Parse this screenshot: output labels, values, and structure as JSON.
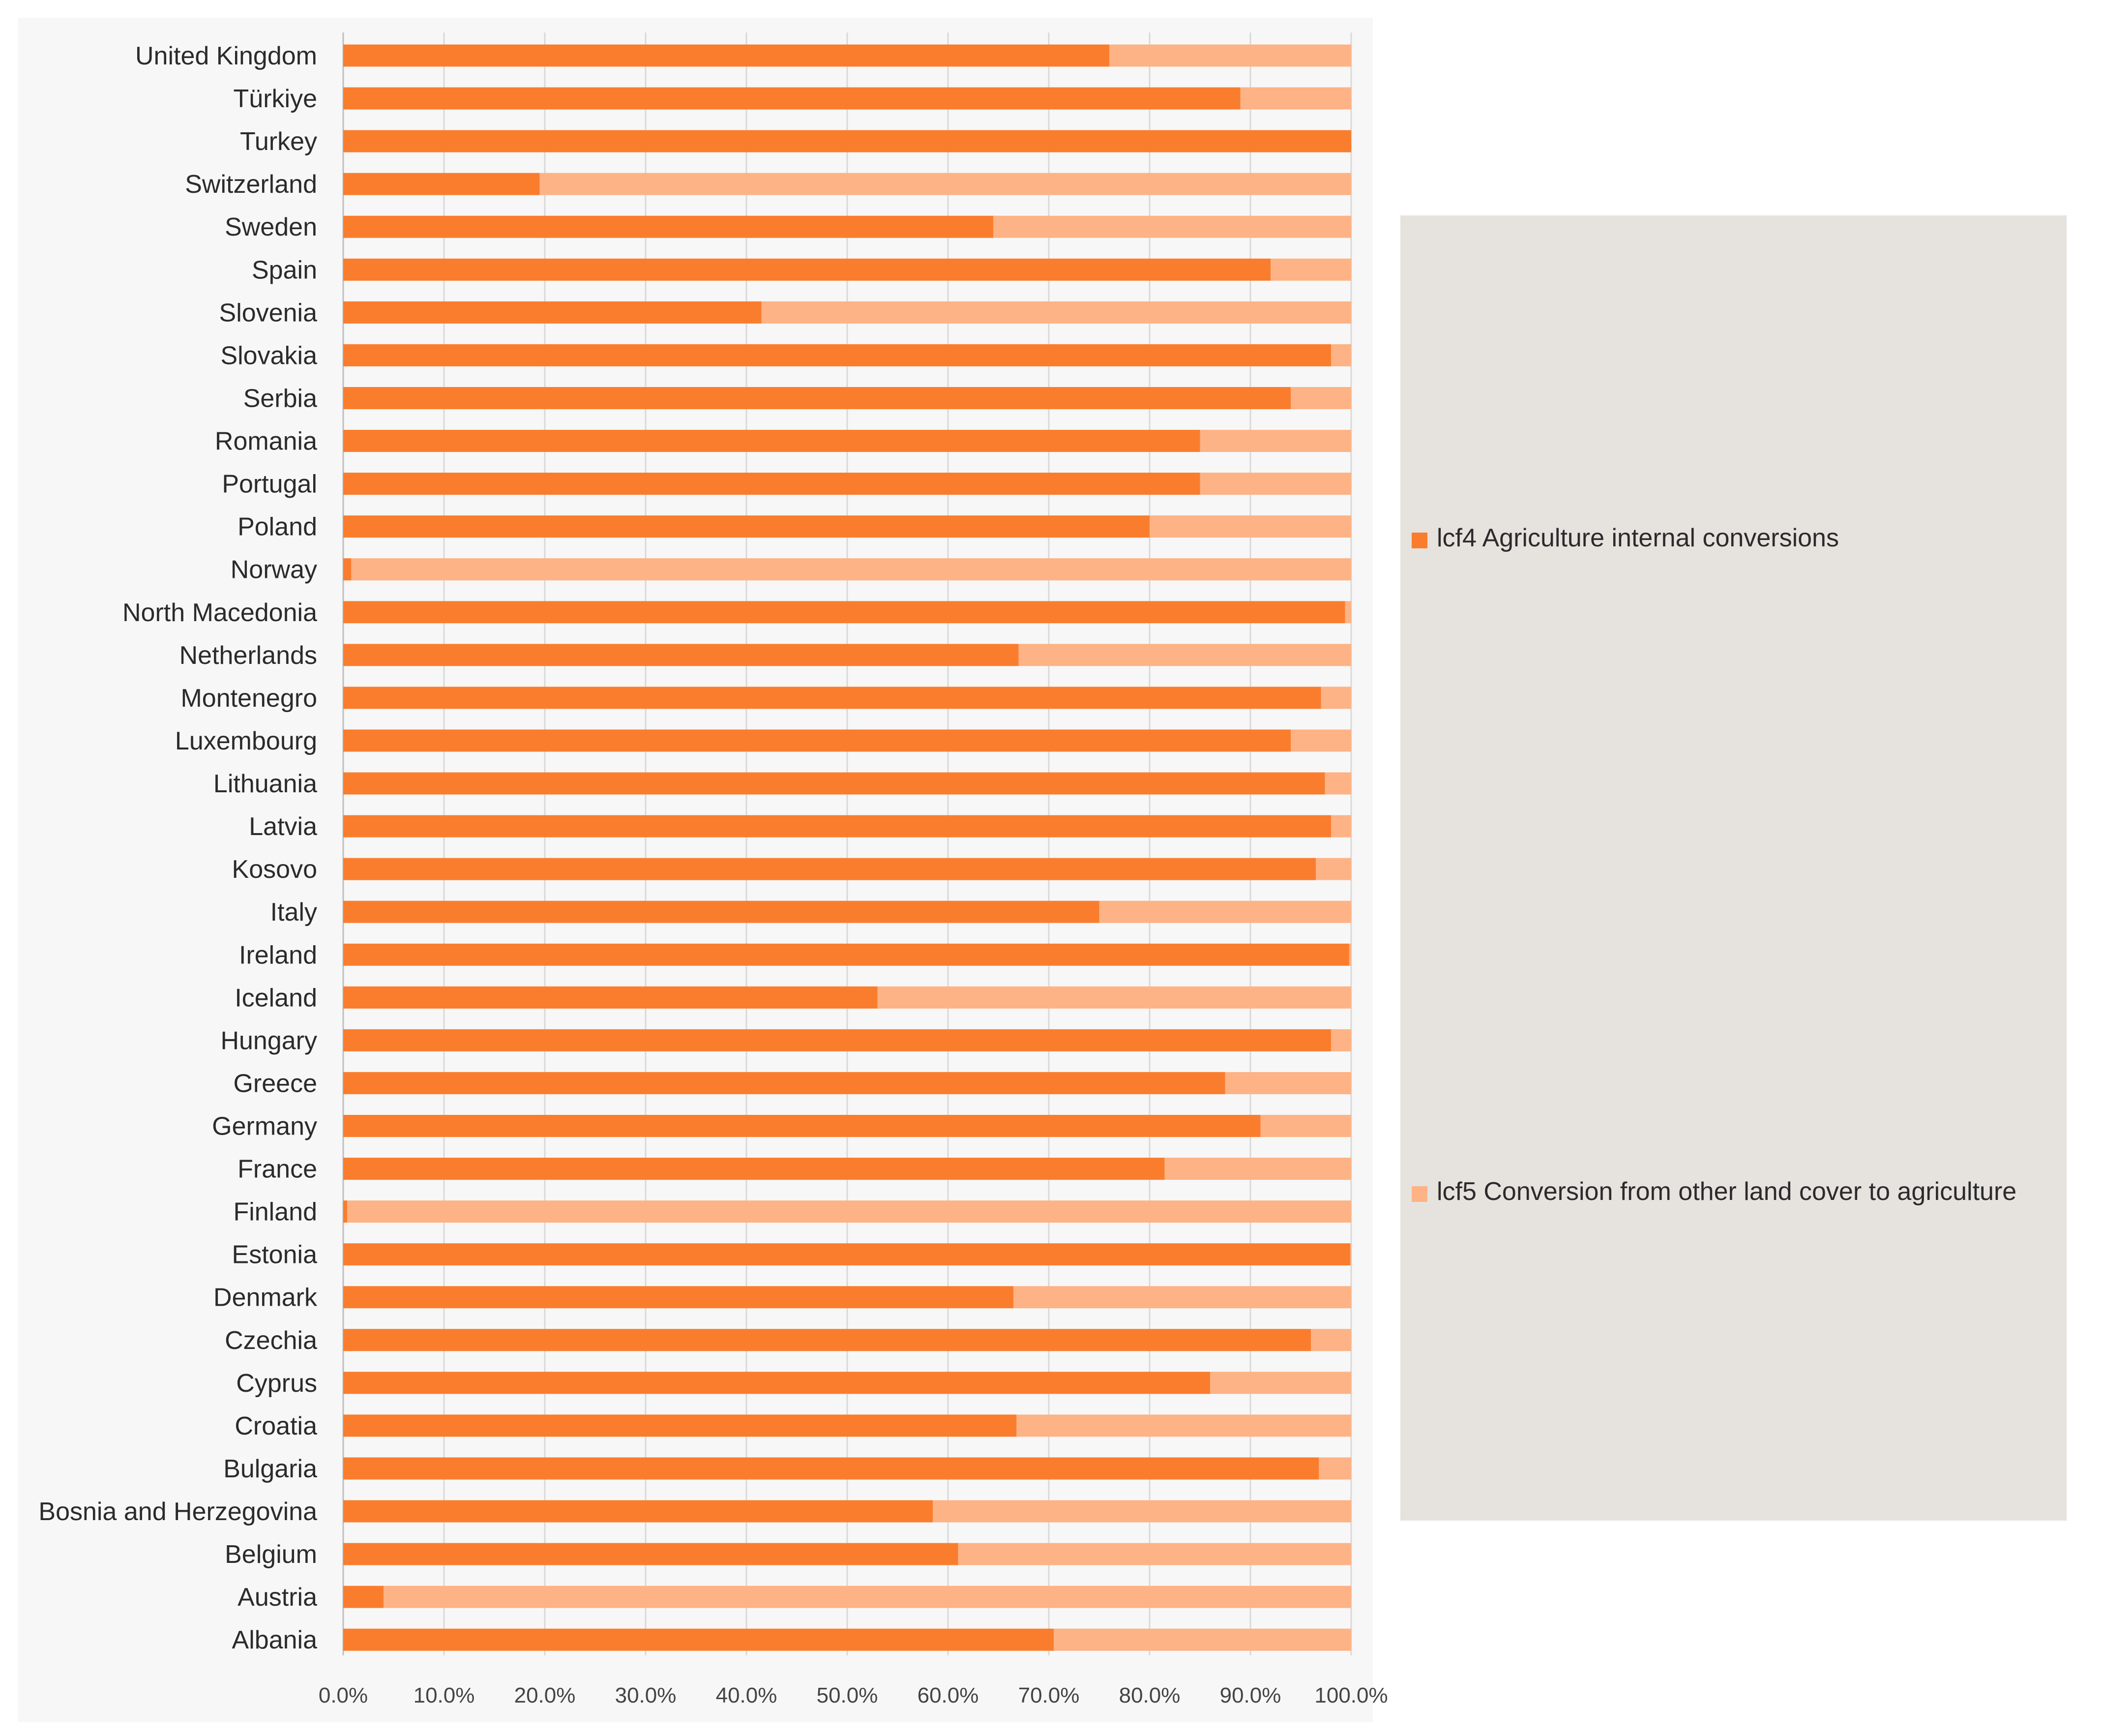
{
  "chart_data": {
    "type": "bar",
    "orientation": "horizontal",
    "stacked": true,
    "normalized_percent": true,
    "title": "",
    "xlabel": "",
    "ylabel": "",
    "xlim": [
      0,
      100
    ],
    "grid": true,
    "legend_position": "right",
    "categories": [
      "United Kingdom",
      "Türkiye",
      "Turkey",
      "Switzerland",
      "Sweden",
      "Spain",
      "Slovenia",
      "Slovakia",
      "Serbia",
      "Romania",
      "Portugal",
      "Poland",
      "Norway",
      "North Macedonia",
      "Netherlands",
      "Montenegro",
      "Luxembourg",
      "Lithuania",
      "Latvia",
      "Kosovo",
      "Italy",
      "Ireland",
      "Iceland",
      "Hungary",
      "Greece",
      "Germany",
      "France",
      "Finland",
      "Estonia",
      "Denmark",
      "Czechia",
      "Cyprus",
      "Croatia",
      "Bulgaria",
      "Bosnia and Herzegovina",
      "Belgium",
      "Austria",
      "Albania"
    ],
    "series": [
      {
        "name": "lcf4 Agriculture internal conversions",
        "color": "#fa7d2e",
        "values": [
          76.0,
          89.0,
          100.0,
          19.5,
          64.5,
          92.0,
          41.5,
          98.0,
          94.0,
          85.0,
          85.0,
          80.0,
          0.8,
          99.4,
          67.0,
          97.0,
          94.0,
          97.4,
          98.0,
          96.5,
          75.0,
          99.8,
          53.0,
          98.0,
          87.5,
          91.0,
          81.5,
          0.4,
          99.9,
          66.5,
          96.0,
          86.0,
          66.8,
          96.8,
          58.5,
          61.0,
          4.0,
          70.5
        ]
      },
      {
        "name": "lcf5 Conversion from other land cover to agriculture",
        "color": "#fdb385",
        "values": [
          24.0,
          11.0,
          0.0,
          80.5,
          35.5,
          8.0,
          58.5,
          2.0,
          6.0,
          15.0,
          15.0,
          20.0,
          99.2,
          0.6,
          33.0,
          3.0,
          6.0,
          2.6,
          2.0,
          3.5,
          25.0,
          0.2,
          47.0,
          2.0,
          12.5,
          9.0,
          18.5,
          99.6,
          0.1,
          33.5,
          4.0,
          14.0,
          33.2,
          3.2,
          41.5,
          39.0,
          96.0,
          29.5
        ]
      }
    ],
    "ticks": [
      "0.0%",
      "10.0%",
      "20.0%",
      "30.0%",
      "40.0%",
      "50.0%",
      "60.0%",
      "70.0%",
      "80.0%",
      "90.0%",
      "100.0%"
    ]
  }
}
